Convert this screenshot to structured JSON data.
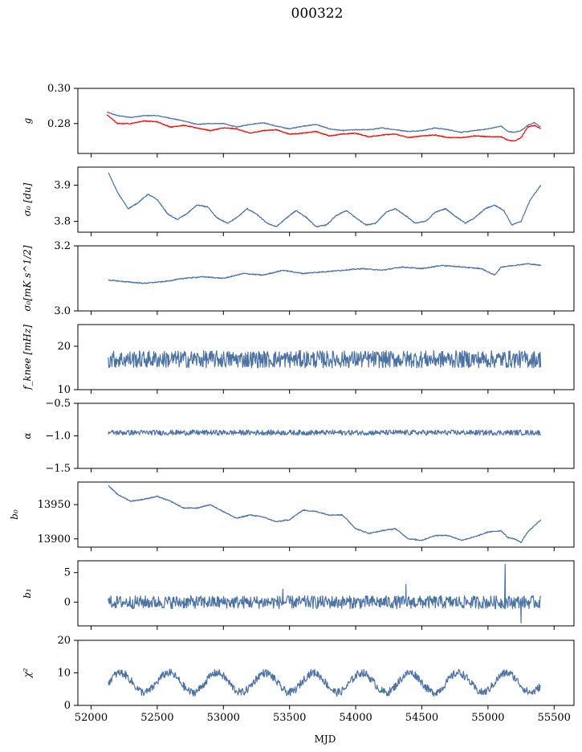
{
  "chart_data": {
    "title": "000322",
    "xlabel": "MJD",
    "x_ticks": [
      52000,
      52500,
      53000,
      53500,
      54000,
      54500,
      55000,
      55500
    ],
    "x_tick_labels": [
      "52000",
      "52500",
      "53000",
      "53500",
      "54000",
      "54500",
      "55000",
      "55500"
    ],
    "xlim": [
      51900,
      55650
    ],
    "colors": {
      "main": "#4c72a4",
      "fit": "#ff0000"
    },
    "panels": [
      {
        "type": "line",
        "ylabel": "g",
        "ylim": [
          0.263,
          0.3
        ],
        "yticks": [
          0.28,
          0.3
        ],
        "ytick_labels": [
          "0.28",
          "0.30"
        ],
        "series": [
          {
            "color": "#4c72a4",
            "x": [
              52120,
              52200,
              52300,
              52400,
              52500,
              52600,
              52700,
              52800,
              52900,
              53000,
              53100,
              53200,
              53300,
              53400,
              53500,
              53600,
              53700,
              53800,
              53900,
              54000,
              54100,
              54200,
              54300,
              54400,
              54500,
              54600,
              54700,
              54800,
              54900,
              55000,
              55100,
              55150,
              55200,
              55250,
              55300,
              55350,
              55400
            ],
            "y": [
              0.2865,
              0.2845,
              0.2835,
              0.2845,
              0.2845,
              0.283,
              0.2815,
              0.2795,
              0.28,
              0.28,
              0.278,
              0.2795,
              0.2805,
              0.2785,
              0.277,
              0.2785,
              0.2795,
              0.277,
              0.276,
              0.2765,
              0.2765,
              0.2775,
              0.2765,
              0.2755,
              0.276,
              0.2775,
              0.2765,
              0.275,
              0.276,
              0.277,
              0.2785,
              0.2755,
              0.275,
              0.276,
              0.279,
              0.2805,
              0.278
            ]
          },
          {
            "color": "#ff0000",
            "x": [
              52120,
              52200,
              52300,
              52400,
              52500,
              52600,
              52700,
              52800,
              52900,
              53000,
              53100,
              53200,
              53300,
              53400,
              53500,
              53600,
              53700,
              53800,
              53900,
              54000,
              54100,
              54200,
              54300,
              54400,
              54500,
              54600,
              54700,
              54800,
              54900,
              55000,
              55100,
              55150,
              55200,
              55250,
              55300,
              55350,
              55400
            ],
            "y": [
              0.285,
              0.28,
              0.28,
              0.2815,
              0.281,
              0.278,
              0.279,
              0.2775,
              0.276,
              0.2775,
              0.277,
              0.2745,
              0.276,
              0.2765,
              0.274,
              0.2745,
              0.2755,
              0.273,
              0.274,
              0.2745,
              0.2725,
              0.2735,
              0.274,
              0.272,
              0.273,
              0.2735,
              0.272,
              0.272,
              0.273,
              0.2725,
              0.2725,
              0.2705,
              0.27,
              0.272,
              0.278,
              0.279,
              0.277
            ]
          }
        ]
      },
      {
        "type": "line",
        "ylabel": "σ₀ [du]",
        "ylim": [
          3.77,
          3.95
        ],
        "yticks": [
          3.8,
          3.9
        ],
        "ytick_labels": [
          "3.8",
          "3.9"
        ],
        "series": [
          {
            "color": "#4c72a4",
            "x": [
              52130,
              52200,
              52280,
              52350,
              52430,
              52500,
              52580,
              52650,
              52720,
              52800,
              52880,
              52950,
              53030,
              53100,
              53180,
              53250,
              53330,
              53400,
              53480,
              53550,
              53630,
              53700,
              53780,
              53850,
              53930,
              54000,
              54080,
              54150,
              54230,
              54300,
              54380,
              54450,
              54530,
              54600,
              54680,
              54750,
              54830,
              54900,
              54980,
              55050,
              55120,
              55180,
              55250,
              55320,
              55400
            ],
            "y": [
              3.935,
              3.88,
              3.835,
              3.85,
              3.875,
              3.86,
              3.82,
              3.805,
              3.82,
              3.845,
              3.84,
              3.81,
              3.795,
              3.81,
              3.835,
              3.82,
              3.795,
              3.785,
              3.81,
              3.83,
              3.81,
              3.785,
              3.79,
              3.815,
              3.83,
              3.81,
              3.79,
              3.795,
              3.825,
              3.835,
              3.815,
              3.795,
              3.8,
              3.825,
              3.835,
              3.815,
              3.795,
              3.81,
              3.835,
              3.845,
              3.83,
              3.79,
              3.8,
              3.86,
              3.9
            ]
          }
        ]
      },
      {
        "type": "line",
        "ylabel": "σ₀[mK s^1/2]",
        "ylim": [
          3.0,
          3.2
        ],
        "yticks": [
          3.0,
          3.2
        ],
        "ytick_labels": [
          "3.0",
          "3.2"
        ],
        "series": [
          {
            "color": "#4c72a4",
            "x": [
              52130,
              52250,
              52400,
              52550,
              52700,
              52850,
              53000,
              53150,
              53300,
              53450,
              53600,
              53750,
              53900,
              54050,
              54200,
              54350,
              54500,
              54650,
              54800,
              54950,
              55050,
              55100,
              55200,
              55300,
              55400
            ],
            "y": [
              3.095,
              3.09,
              3.085,
              3.09,
              3.1,
              3.105,
              3.1,
              3.115,
              3.11,
              3.125,
              3.115,
              3.12,
              3.125,
              3.13,
              3.125,
              3.135,
              3.13,
              3.14,
              3.135,
              3.13,
              3.11,
              3.135,
              3.14,
              3.145,
              3.14
            ]
          }
        ]
      },
      {
        "type": "line",
        "ylabel": "f_knee [mHz]",
        "ylim": [
          10,
          25
        ],
        "yticks": [
          10,
          20
        ],
        "ytick_labels": [
          "10",
          "20"
        ],
        "series": [
          {
            "color": "#4c72a4",
            "mean": 17.0,
            "noise_amplitude": 2.0,
            "x_range": [
              52130,
              55400
            ]
          }
        ]
      },
      {
        "type": "line",
        "ylabel": "α",
        "ylim": [
          -1.5,
          -0.5
        ],
        "yticks": [
          -1.5,
          -1.0,
          -0.5
        ],
        "ytick_labels": [
          "−1.5",
          "−1.0",
          "−0.5"
        ],
        "series": [
          {
            "color": "#4c72a4",
            "mean": -0.95,
            "noise_amplitude": 0.04,
            "x_range": [
              52130,
              55400
            ]
          }
        ]
      },
      {
        "type": "line",
        "ylabel": "b₀",
        "ylim": [
          13888,
          13983
        ],
        "yticks": [
          13900,
          13950
        ],
        "ytick_labels": [
          "13900",
          "13950"
        ],
        "series": [
          {
            "color": "#4c72a4",
            "x": [
              52130,
              52200,
              52300,
              52400,
              52500,
              52600,
              52700,
              52800,
              52900,
              53000,
              53100,
              53200,
              53300,
              53400,
              53500,
              53600,
              53700,
              53800,
              53900,
              54000,
              54100,
              54200,
              54300,
              54400,
              54500,
              54600,
              54700,
              54800,
              54900,
              55000,
              55100,
              55150,
              55200,
              55250,
              55300,
              55400
            ],
            "y": [
              13978,
              13965,
              13955,
              13958,
              13962,
              13955,
              13945,
              13945,
              13950,
              13940,
              13930,
              13935,
              13932,
              13925,
              13928,
              13942,
              13940,
              13935,
              13935,
              13915,
              13908,
              13912,
              13915,
              13900,
              13898,
              13905,
              13905,
              13898,
              13903,
              13910,
              13912,
              13902,
              13900,
              13895,
              13910,
              13928
            ]
          }
        ]
      },
      {
        "type": "line",
        "ylabel": "b₁",
        "ylim": [
          -4,
          7
        ],
        "yticks": [
          0,
          5
        ],
        "ytick_labels": [
          "0",
          "5"
        ],
        "series": [
          {
            "color": "#4c72a4",
            "mean": 0.0,
            "noise_amplitude": 1.1,
            "x_range": [
              52130,
              55400
            ],
            "spikes": [
              [
                53450,
                2.2
              ],
              [
                54380,
                3.0
              ],
              [
                55130,
                6.4
              ],
              [
                55250,
                -3.5
              ]
            ]
          }
        ]
      },
      {
        "type": "line",
        "ylabel": "χ²",
        "ylim": [
          0,
          20
        ],
        "yticks": [
          0,
          10,
          20
        ],
        "ytick_labels": [
          "0",
          "10",
          "20"
        ],
        "series": [
          {
            "color": "#4c72a4",
            "mean": 7.0,
            "oscillation_amplitude": 3.0,
            "period_days": 365,
            "noise_amplitude": 1.2,
            "x_range": [
              52130,
              55400
            ]
          }
        ]
      }
    ]
  }
}
